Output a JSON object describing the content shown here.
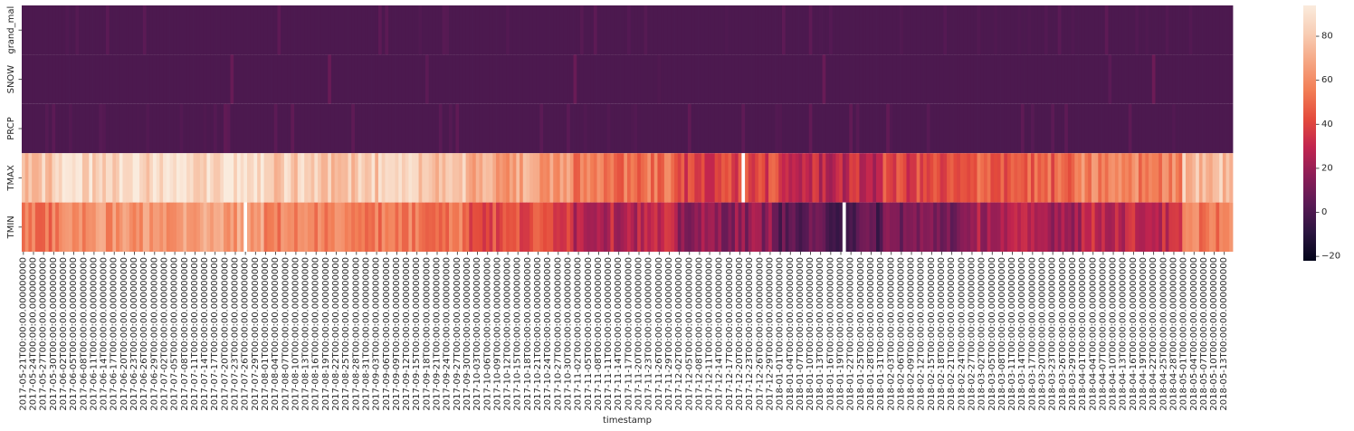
{
  "chart_data": {
    "type": "heatmap",
    "title": "",
    "xlabel": "timestamp",
    "ylabel": "",
    "rows": [
      "grand_mal",
      "SNOW",
      "PRCP",
      "TMAX",
      "TMIN"
    ],
    "x_start": "2017-05-21",
    "x_end": "2018-05-15",
    "x_tick_labels": [
      "2017-05-21T00:00:00.000000000",
      "2017-05-24T00:00:00.000000000",
      "2017-05-27T00:00:00.000000000",
      "2017-05-30T00:00:00.000000000",
      "2017-06-02T00:00:00.000000000",
      "2017-06-05T00:00:00.000000000",
      "2017-06-08T00:00:00.000000000",
      "2017-06-11T00:00:00.000000000",
      "2017-06-14T00:00:00.000000000",
      "2017-06-17T00:00:00.000000000",
      "2017-06-20T00:00:00.000000000",
      "2017-06-23T00:00:00.000000000",
      "2017-06-26T00:00:00.000000000",
      "2017-06-29T00:00:00.000000000",
      "2017-07-02T00:00:00.000000000",
      "2017-07-05T00:00:00.000000000",
      "2017-07-08T00:00:00.000000000",
      "2017-07-11T00:00:00.000000000",
      "2017-07-14T00:00:00.000000000",
      "2017-07-17T00:00:00.000000000",
      "2017-07-20T00:00:00.000000000",
      "2017-07-23T00:00:00.000000000",
      "2017-07-26T00:00:00.000000000",
      "2017-07-29T00:00:00.000000000",
      "2017-08-01T00:00:00.000000000",
      "2017-08-04T00:00:00.000000000",
      "2017-08-07T00:00:00.000000000",
      "2017-08-10T00:00:00.000000000",
      "2017-08-13T00:00:00.000000000",
      "2017-08-16T00:00:00.000000000",
      "2017-08-19T00:00:00.000000000",
      "2017-08-22T00:00:00.000000000",
      "2017-08-25T00:00:00.000000000",
      "2017-08-28T00:00:00.000000000",
      "2017-08-31T00:00:00.000000000",
      "2017-09-03T00:00:00.000000000",
      "2017-09-06T00:00:00.000000000",
      "2017-09-09T00:00:00.000000000",
      "2017-09-12T00:00:00.000000000",
      "2017-09-15T00:00:00.000000000",
      "2017-09-18T00:00:00.000000000",
      "2017-09-21T00:00:00.000000000",
      "2017-09-24T00:00:00.000000000",
      "2017-09-27T00:00:00.000000000",
      "2017-09-30T00:00:00.000000000",
      "2017-10-03T00:00:00.000000000",
      "2017-10-06T00:00:00.000000000",
      "2017-10-09T00:00:00.000000000",
      "2017-10-12T00:00:00.000000000",
      "2017-10-15T00:00:00.000000000",
      "2017-10-18T00:00:00.000000000",
      "2017-10-21T00:00:00.000000000",
      "2017-10-24T00:00:00.000000000",
      "2017-10-27T00:00:00.000000000",
      "2017-10-30T00:00:00.000000000",
      "2017-11-02T00:00:00.000000000",
      "2017-11-05T00:00:00.000000000",
      "2017-11-08T00:00:00.000000000",
      "2017-11-11T00:00:00.000000000",
      "2017-11-14T00:00:00.000000000",
      "2017-11-17T00:00:00.000000000",
      "2017-11-20T00:00:00.000000000",
      "2017-11-23T00:00:00.000000000",
      "2017-11-26T00:00:00.000000000",
      "2017-11-29T00:00:00.000000000",
      "2017-12-02T00:00:00.000000000",
      "2017-12-05T00:00:00.000000000",
      "2017-12-08T00:00:00.000000000",
      "2017-12-11T00:00:00.000000000",
      "2017-12-14T00:00:00.000000000",
      "2017-12-17T00:00:00.000000000",
      "2017-12-20T00:00:00.000000000",
      "2017-12-23T00:00:00.000000000",
      "2017-12-26T00:00:00.000000000",
      "2017-12-29T00:00:00.000000000",
      "2018-01-01T00:00:00.000000000",
      "2018-01-04T00:00:00.000000000",
      "2018-01-07T00:00:00.000000000",
      "2018-01-10T00:00:00.000000000",
      "2018-01-13T00:00:00.000000000",
      "2018-01-16T00:00:00.000000000",
      "2018-01-19T00:00:00.000000000",
      "2018-01-22T00:00:00.000000000",
      "2018-01-25T00:00:00.000000000",
      "2018-01-28T00:00:00.000000000",
      "2018-01-31T00:00:00.000000000",
      "2018-02-03T00:00:00.000000000",
      "2018-02-06T00:00:00.000000000",
      "2018-02-09T00:00:00.000000000",
      "2018-02-12T00:00:00.000000000",
      "2018-02-15T00:00:00.000000000",
      "2018-02-18T00:00:00.000000000",
      "2018-02-21T00:00:00.000000000",
      "2018-02-24T00:00:00.000000000",
      "2018-02-27T00:00:00.000000000",
      "2018-03-02T00:00:00.000000000",
      "2018-03-05T00:00:00.000000000",
      "2018-03-08T00:00:00.000000000",
      "2018-03-11T00:00:00.000000000",
      "2018-03-14T00:00:00.000000000",
      "2018-03-17T00:00:00.000000000",
      "2018-03-20T00:00:00.000000000",
      "2018-03-23T00:00:00.000000000",
      "2018-03-26T00:00:00.000000000",
      "2018-03-29T00:00:00.000000000",
      "2018-04-01T00:00:00.000000000",
      "2018-04-04T00:00:00.000000000",
      "2018-04-07T00:00:00.000000000",
      "2018-04-10T00:00:00.000000000",
      "2018-04-13T00:00:00.000000000",
      "2018-04-16T00:00:00.000000000",
      "2018-04-19T00:00:00.000000000",
      "2018-04-22T00:00:00.000000000",
      "2018-04-25T00:00:00.000000000",
      "2018-04-28T00:00:00.000000000",
      "2018-05-01T00:00:00.000000000",
      "2018-05-04T00:00:00.000000000",
      "2018-05-07T00:00:00.000000000",
      "2018-05-10T00:00:00.000000000",
      "2018-05-13T00:00:00.000000000"
    ],
    "colorbar": {
      "min": -22,
      "max": 94,
      "ticks": [
        -20,
        0,
        20,
        40,
        60,
        80
      ],
      "colormap": "rocket",
      "stops": [
        "#03051a",
        "#2b1540",
        "#5a1a55",
        "#8c1d57",
        "#c1244f",
        "#e44b3c",
        "#f27d55",
        "#f5a582",
        "#f8cdb4",
        "#faebdd"
      ]
    },
    "missing_dates": {
      "TMAX": [
        "2017-12-21"
      ],
      "TMIN": [
        "2017-07-26",
        "2018-01-20"
      ]
    },
    "tmax_monthly_typical": {
      "2017-05": 78,
      "2017-06": 86,
      "2017-07": 89,
      "2017-08": 81,
      "2017-09": 80,
      "2017-10": 67,
      "2017-11": 52,
      "2017-12": 40,
      "2018-01": 30,
      "2018-02": 40,
      "2018-03": 48,
      "2018-04": 57,
      "2018-05": 78
    },
    "tmin_monthly_typical": {
      "2017-05": 53,
      "2017-06": 62,
      "2017-07": 66,
      "2017-08": 58,
      "2017-09": 55,
      "2017-10": 42,
      "2017-11": 28,
      "2017-12": 17,
      "2018-01": 3,
      "2018-02": 12,
      "2018-03": 24,
      "2018-04": 30,
      "2018-05": 56
    },
    "prcp_range": [
      0,
      6
    ],
    "snow_range": [
      0,
      10
    ],
    "grand_mal_range": [
      0,
      5
    ]
  }
}
